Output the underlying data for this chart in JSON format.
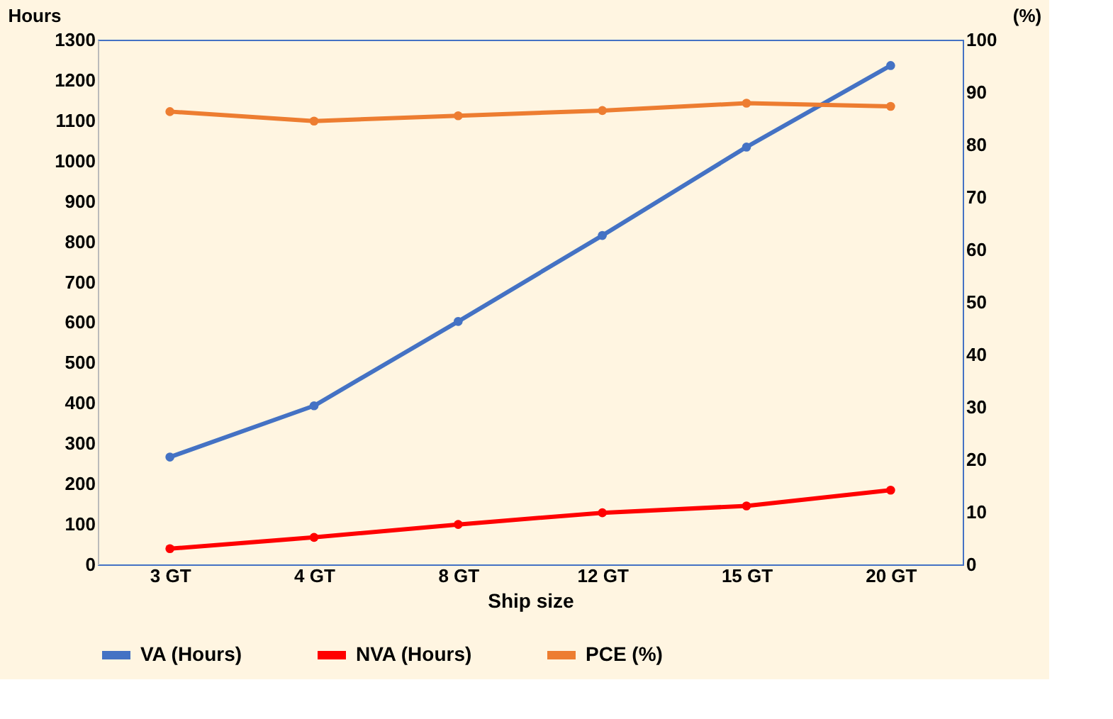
{
  "chart_data": {
    "type": "line",
    "xlabel": "Ship size",
    "ylabel": "Hours",
    "y2label": "(%)",
    "categories": [
      "3 GT",
      "4 GT",
      "8 GT",
      "12 GT",
      "15 GT",
      "20 GT"
    ],
    "series": [
      {
        "name": "VA (Hours)",
        "color": "#4472c4",
        "values": [
          266,
          393,
          602,
          815,
          1034,
          1236
        ]
      },
      {
        "name": "NVA (Hours)",
        "color": "#ff0000",
        "values": [
          39,
          67,
          99,
          128,
          145,
          184
        ]
      },
      {
        "name": "PCE (%)",
        "color": "#ed7d31",
        "axis": "y2",
        "values": [
          86.3,
          84.5,
          85.5,
          86.5,
          87.9,
          87.3
        ]
      }
    ],
    "ylim": [
      0,
      1300
    ],
    "yticks": [
      0,
      100,
      200,
      300,
      400,
      500,
      600,
      700,
      800,
      900,
      1000,
      1100,
      1200,
      1300
    ],
    "y2lim": [
      0,
      100
    ],
    "y2ticks": [
      0,
      10,
      20,
      30,
      40,
      50,
      60,
      70,
      80,
      90,
      100
    ],
    "grid": false,
    "legend": "bottom",
    "marker": "circle",
    "line_style": "solid"
  }
}
